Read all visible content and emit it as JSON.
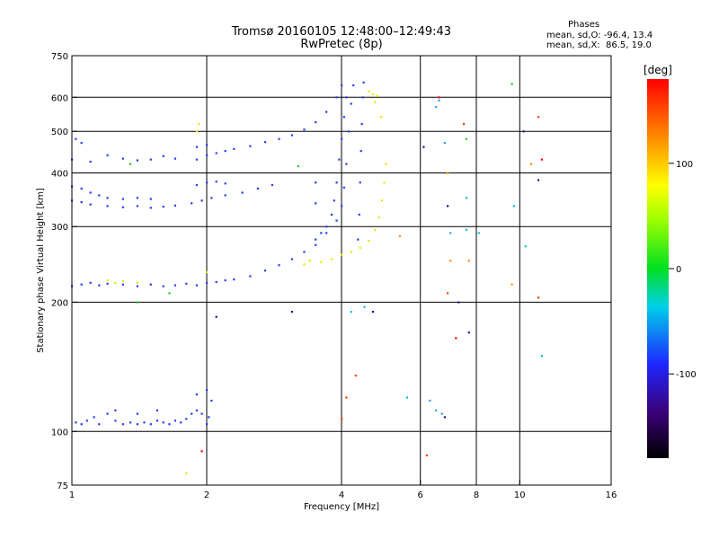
{
  "title_line1": "Tromsø 20160105 12:48:00–12:49:43",
  "title_line2": "RwPretec (8p)",
  "stats": {
    "heading": "Phases",
    "o_line": "mean, sd,O: -96.4, 13.4",
    "x_line": "mean, sd,X:  86.5, 19.0"
  },
  "colorbar": {
    "unit_label": "[deg]",
    "ticks": [
      {
        "value": 100,
        "label": "100"
      },
      {
        "value": 0,
        "label": "0"
      },
      {
        "value": -100,
        "label": "-100"
      }
    ],
    "range": [
      -180,
      180
    ]
  },
  "chart_data": {
    "type": "scatter",
    "xlabel": "Frequency [MHz]",
    "ylabel": "Stationary phase Virtual Height [km]",
    "x_scale": "log",
    "y_scale": "log",
    "xlim": [
      1,
      16
    ],
    "ylim": [
      75,
      750
    ],
    "x_ticks": [
      {
        "value": 1,
        "label": "1"
      },
      {
        "value": 2,
        "label": "2"
      },
      {
        "value": 4,
        "label": "4"
      },
      {
        "value": 6,
        "label": "6"
      },
      {
        "value": 8,
        "label": "8"
      },
      {
        "value": 10,
        "label": "10"
      },
      {
        "value": 16,
        "label": "16"
      }
    ],
    "x_gridlines": [
      2,
      4,
      6,
      8,
      10
    ],
    "y_ticks": [
      {
        "value": 75,
        "label": "75"
      },
      {
        "value": 100,
        "label": "100"
      },
      {
        "value": 200,
        "label": "200"
      },
      {
        "value": 300,
        "label": "300"
      },
      {
        "value": 400,
        "label": "400"
      },
      {
        "value": 500,
        "label": "500"
      },
      {
        "value": 600,
        "label": "600"
      },
      {
        "value": 750,
        "label": "750"
      }
    ],
    "y_gridlines": [
      100,
      200,
      300,
      400,
      500,
      600
    ],
    "grid": true,
    "series": [
      {
        "color": "#2a3cf0",
        "points": [
          [
            1.02,
            105
          ],
          [
            1.05,
            104
          ],
          [
            1.08,
            106
          ],
          [
            1.12,
            108
          ],
          [
            1.15,
            104
          ],
          [
            1.2,
            110
          ],
          [
            1.25,
            106
          ],
          [
            1.3,
            104
          ],
          [
            1.35,
            105
          ],
          [
            1.4,
            104
          ],
          [
            1.45,
            105
          ],
          [
            1.5,
            104
          ],
          [
            1.55,
            106
          ],
          [
            1.6,
            105
          ],
          [
            1.65,
            104
          ],
          [
            1.7,
            106
          ],
          [
            1.75,
            105
          ],
          [
            1.8,
            107
          ],
          [
            1.85,
            110
          ],
          [
            1.9,
            112
          ],
          [
            1.95,
            110
          ],
          [
            2.0,
            104
          ],
          [
            2.02,
            108
          ],
          [
            2.05,
            118
          ],
          [
            1.9,
            122
          ],
          [
            2.0,
            125
          ],
          [
            1.25,
            112
          ],
          [
            1.4,
            110
          ],
          [
            1.55,
            112
          ]
        ]
      },
      {
        "color": "#2a3cf0",
        "points": [
          [
            1.0,
            218
          ],
          [
            1.05,
            220
          ],
          [
            1.1,
            222
          ],
          [
            1.15,
            219
          ],
          [
            1.2,
            221
          ],
          [
            1.3,
            220
          ],
          [
            1.4,
            218
          ],
          [
            1.5,
            220
          ],
          [
            1.6,
            218
          ],
          [
            1.7,
            219
          ],
          [
            1.8,
            221
          ],
          [
            1.9,
            219
          ],
          [
            2.0,
            222
          ],
          [
            2.1,
            223
          ],
          [
            2.2,
            225
          ],
          [
            2.3,
            226
          ],
          [
            2.5,
            230
          ],
          [
            2.7,
            237
          ],
          [
            2.9,
            244
          ],
          [
            3.1,
            252
          ],
          [
            3.3,
            262
          ],
          [
            3.5,
            272
          ],
          [
            3.7,
            290
          ],
          [
            3.9,
            310
          ],
          [
            4.0,
            335
          ],
          [
            4.05,
            370
          ],
          [
            4.1,
            420
          ],
          [
            4.15,
            500
          ],
          [
            4.2,
            580
          ],
          [
            4.25,
            640
          ]
        ]
      },
      {
        "color": "#2a3cf0",
        "points": [
          [
            1.0,
            345
          ],
          [
            1.05,
            342
          ],
          [
            1.1,
            338
          ],
          [
            1.2,
            335
          ],
          [
            1.3,
            333
          ],
          [
            1.4,
            335
          ],
          [
            1.5,
            332
          ],
          [
            1.6,
            334
          ],
          [
            1.7,
            336
          ],
          [
            1.0,
            372
          ],
          [
            1.05,
            368
          ],
          [
            1.1,
            360
          ],
          [
            1.15,
            355
          ],
          [
            1.2,
            350
          ],
          [
            1.3,
            348
          ],
          [
            1.4,
            350
          ],
          [
            1.5,
            348
          ]
        ]
      },
      {
        "color": "#2a3cf0",
        "points": [
          [
            1.0,
            430
          ],
          [
            1.1,
            425
          ],
          [
            1.2,
            440
          ],
          [
            1.3,
            432
          ],
          [
            1.4,
            428
          ],
          [
            1.5,
            430
          ],
          [
            1.6,
            438
          ],
          [
            1.7,
            432
          ],
          [
            1.02,
            480
          ],
          [
            1.05,
            470
          ]
        ]
      },
      {
        "color": "#2a3cf0",
        "points": [
          [
            1.85,
            340
          ],
          [
            1.95,
            345
          ],
          [
            2.05,
            350
          ],
          [
            2.2,
            355
          ],
          [
            2.4,
            360
          ],
          [
            2.6,
            368
          ],
          [
            2.8,
            375
          ],
          [
            1.9,
            375
          ],
          [
            2.0,
            380
          ],
          [
            2.1,
            382
          ],
          [
            2.2,
            378
          ]
        ]
      },
      {
        "color": "#2a3cf0",
        "points": [
          [
            1.9,
            430
          ],
          [
            2.0,
            440
          ],
          [
            2.1,
            445
          ],
          [
            2.2,
            450
          ],
          [
            2.3,
            455
          ],
          [
            2.5,
            462
          ],
          [
            2.7,
            472
          ],
          [
            2.9,
            480
          ],
          [
            3.1,
            490
          ],
          [
            3.3,
            505
          ],
          [
            3.5,
            525
          ],
          [
            3.7,
            555
          ],
          [
            3.9,
            600
          ],
          [
            4.0,
            640
          ],
          [
            1.9,
            460
          ],
          [
            2.0,
            465
          ]
        ]
      },
      {
        "color": "#2a3cf0",
        "points": [
          [
            3.5,
            280
          ],
          [
            3.6,
            290
          ],
          [
            3.7,
            300
          ],
          [
            3.8,
            320
          ],
          [
            3.85,
            345
          ],
          [
            3.9,
            380
          ],
          [
            3.95,
            430
          ],
          [
            4.0,
            480
          ],
          [
            4.05,
            540
          ],
          [
            4.1,
            600
          ],
          [
            3.5,
            380
          ],
          [
            3.5,
            340
          ]
        ]
      },
      {
        "color": "#2a3cf0",
        "points": [
          [
            4.35,
            280
          ],
          [
            4.38,
            320
          ],
          [
            4.4,
            380
          ],
          [
            4.42,
            450
          ],
          [
            4.44,
            520
          ],
          [
            4.46,
            600
          ],
          [
            4.48,
            650
          ]
        ]
      },
      {
        "color": "#e8e800",
        "points": [
          [
            3.6,
            248
          ],
          [
            3.8,
            252
          ],
          [
            4.0,
            258
          ],
          [
            4.2,
            262
          ],
          [
            4.4,
            268
          ],
          [
            4.6,
            278
          ],
          [
            4.75,
            295
          ],
          [
            4.85,
            315
          ],
          [
            4.92,
            345
          ],
          [
            4.98,
            380
          ],
          [
            5.02,
            420
          ],
          [
            3.3,
            245
          ],
          [
            3.4,
            250
          ]
        ]
      },
      {
        "color": "#e8e800",
        "points": [
          [
            4.6,
            620
          ],
          [
            4.7,
            610
          ],
          [
            4.8,
            605
          ],
          [
            4.75,
            585
          ],
          [
            4.9,
            540
          ]
        ]
      },
      {
        "color": "#e8e800",
        "points": [
          [
            1.2,
            225
          ],
          [
            1.25,
            222
          ],
          [
            1.3,
            224
          ],
          [
            1.4,
            222
          ],
          [
            2.0,
            235
          ],
          [
            1.9,
            500
          ],
          [
            1.92,
            520
          ],
          [
            1.8,
            80
          ]
        ]
      },
      {
        "color": "#3399ff",
        "points": [
          [
            6.3,
            118
          ],
          [
            6.5,
            112
          ],
          [
            6.7,
            110
          ],
          [
            6.5,
            570
          ],
          [
            6.6,
            590
          ],
          [
            6.8,
            470
          ],
          [
            7.0,
            290
          ]
        ]
      },
      {
        "color": "#ff3b00",
        "points": [
          [
            7.5,
            520
          ],
          [
            11.0,
            540
          ],
          [
            11.0,
            205
          ],
          [
            6.2,
            88
          ],
          [
            4.0,
            107
          ],
          [
            4.1,
            120
          ],
          [
            4.3,
            135
          ],
          [
            6.9,
            210
          ]
        ]
      },
      {
        "color": "#20d020",
        "points": [
          [
            1.4,
            200
          ],
          [
            1.65,
            210
          ],
          [
            7.6,
            480
          ],
          [
            9.6,
            645
          ],
          [
            3.2,
            415
          ],
          [
            1.35,
            420
          ]
        ]
      },
      {
        "color": "#1a1aa0",
        "points": [
          [
            6.9,
            335
          ],
          [
            6.8,
            108
          ],
          [
            10.2,
            500
          ],
          [
            11.0,
            385
          ],
          [
            7.7,
            170
          ],
          [
            6.1,
            460
          ],
          [
            7.3,
            200
          ],
          [
            3.1,
            190
          ],
          [
            4.7,
            190
          ],
          [
            2.1,
            185
          ]
        ]
      },
      {
        "color": "#00c8d0",
        "points": [
          [
            9.7,
            335
          ],
          [
            7.6,
            350
          ],
          [
            10.3,
            270
          ],
          [
            7.6,
            295
          ],
          [
            8.1,
            290
          ],
          [
            4.5,
            195
          ],
          [
            4.2,
            190
          ],
          [
            11.2,
            150
          ],
          [
            5.6,
            120
          ]
        ]
      },
      {
        "color": "#ff8c00",
        "points": [
          [
            5.4,
            285
          ],
          [
            7.7,
            250
          ],
          [
            9.6,
            220
          ],
          [
            7.0,
            250
          ],
          [
            6.9,
            400
          ],
          [
            10.6,
            420
          ]
        ]
      },
      {
        "color": "#ff0000",
        "points": [
          [
            1.95,
            90
          ],
          [
            6.6,
            600
          ],
          [
            11.2,
            430
          ],
          [
            7.2,
            165
          ]
        ]
      }
    ]
  }
}
